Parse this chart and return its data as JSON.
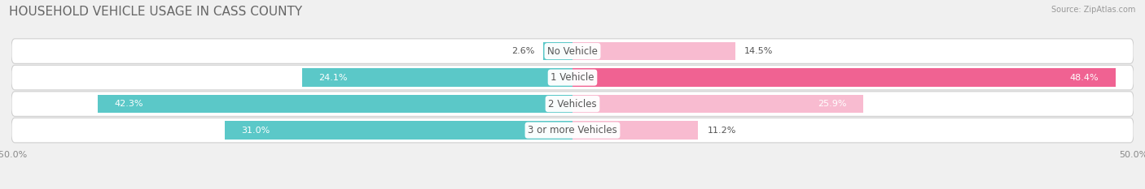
{
  "title": "HOUSEHOLD VEHICLE USAGE IN CASS COUNTY",
  "source": "Source: ZipAtlas.com",
  "categories": [
    "No Vehicle",
    "1 Vehicle",
    "2 Vehicles",
    "3 or more Vehicles"
  ],
  "owner_values": [
    2.6,
    24.1,
    42.3,
    31.0
  ],
  "renter_values": [
    14.5,
    48.4,
    25.9,
    11.2
  ],
  "owner_color": "#5bc8c8",
  "renter_color": "#f06292",
  "owner_color_light": "#5bc8c8",
  "renter_color_light": "#f8bbd0",
  "xlim": [
    -50,
    50
  ],
  "background_color": "#f0f0f0",
  "row_bg_color": "#ffffff",
  "row_border_color": "#d0d0d0",
  "title_fontsize": 11,
  "label_fontsize": 8.5,
  "value_fontsize": 8.0,
  "axis_fontsize": 8.0
}
